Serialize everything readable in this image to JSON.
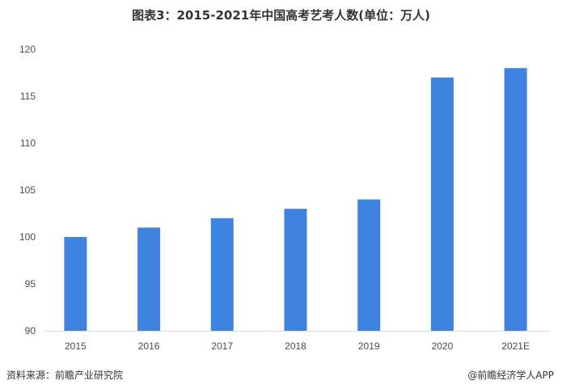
{
  "title": "图表3：2015-2021年中国高考艺考人数(单位：万人)",
  "source": "资料来源：前瞻产业研究院",
  "credit": "@前瞻经济学人APP",
  "chart_data": {
    "type": "bar",
    "title": "图表3：2015-2021年中国高考艺考人数(单位：万人)",
    "categories": [
      "2015",
      "2016",
      "2017",
      "2018",
      "2019",
      "2020",
      "2021E"
    ],
    "values": [
      100,
      101,
      102,
      103,
      104,
      117,
      118
    ],
    "ylim": [
      90,
      120
    ],
    "yticks": [
      90,
      95,
      100,
      105,
      110,
      115,
      120
    ],
    "ylabel": "",
    "xlabel": "",
    "grid": false,
    "bar_color": "#3f83e0",
    "axis_color": "#d9d9d9"
  }
}
